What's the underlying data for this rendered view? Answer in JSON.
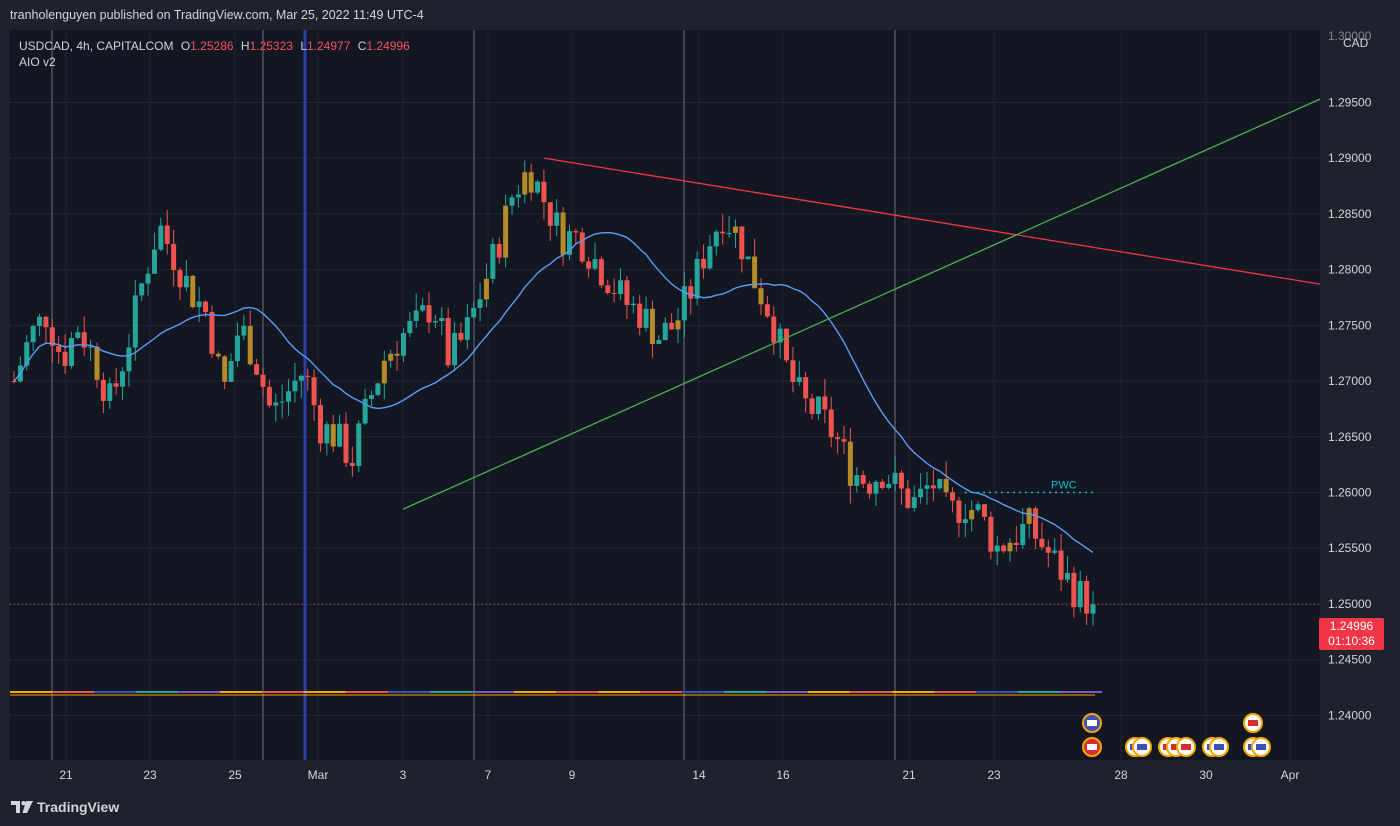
{
  "header": {
    "publisher": "tranholenguyen published on TradingView.com, Mar 25, 2022 11:49 UTC-4"
  },
  "legend": {
    "symbol": "USDCAD, 4h, CAPITALCOM",
    "o_label": "O",
    "o": "1.25286",
    "h_label": "H",
    "h": "1.25323",
    "l_label": "L",
    "l": "1.24977",
    "c_label": "C",
    "c": "1.24996",
    "indicator": "AIO v2"
  },
  "price_axis": {
    "currency": "CAD",
    "top_label": "1.30000",
    "current_price": "1.24996",
    "countdown": "01:10:36"
  },
  "footer": {
    "brand": "TradingView"
  },
  "annotations": {
    "pwc_label": "PWC"
  },
  "colors": {
    "up": "#26a69a",
    "down": "#ef5350",
    "ma": "#5b9cf6",
    "trend_red": "#f23645",
    "trend_green": "#4caf50",
    "pwc": "#00bcd4",
    "background": "#131722"
  },
  "chart_data": {
    "type": "candlestick",
    "symbol": "USDCAD",
    "timeframe": "4h",
    "ylim": [
      1.236,
      1.3015
    ],
    "y_ticks": [
      "1.29500",
      "1.29000",
      "1.28500",
      "1.28000",
      "1.27500",
      "1.27000",
      "1.26500",
      "1.26000",
      "1.25500",
      "1.25000",
      "1.24500",
      "1.24000"
    ],
    "x_ticks": [
      "21",
      "23",
      "25",
      "Mar",
      "3",
      "7",
      "9",
      "14",
      "16",
      "21",
      "23",
      "28",
      "30",
      "Apr"
    ],
    "close_path": [
      1.27,
      1.274,
      1.276,
      1.272,
      1.275,
      1.272,
      1.268,
      1.273,
      1.279,
      1.284,
      1.281,
      1.278,
      1.276,
      1.269,
      1.275,
      1.272,
      1.267,
      1.269,
      1.271,
      1.266,
      1.265,
      1.263,
      1.268,
      1.272,
      1.274,
      1.275,
      1.277,
      1.272,
      1.274,
      1.278,
      1.282,
      1.287,
      1.289,
      1.286,
      1.283,
      1.283,
      1.281,
      1.279,
      1.277,
      1.276,
      1.274,
      1.275,
      1.278,
      1.282,
      1.285,
      1.283,
      1.279,
      1.276,
      1.271,
      1.268,
      1.267,
      1.265,
      1.262,
      1.261,
      1.262,
      1.26,
      1.259,
      1.261,
      1.258,
      1.259,
      1.258,
      1.255,
      1.256,
      1.257,
      1.255,
      1.253,
      1.251,
      1.25
    ],
    "open": "1.25286",
    "high": "1.25323",
    "low": "1.24977",
    "close": "1.24996",
    "last_price": "1.24996",
    "pwc": 1.26,
    "trendlines": [
      {
        "color": "red",
        "from": {
          "x": "Mar 8",
          "y": 1.29
        },
        "to": {
          "x": "Apr 1",
          "y": 1.2787
        }
      },
      {
        "color": "green",
        "from": {
          "x": "Mar 3",
          "y": 1.2585
        },
        "to": {
          "x": "Apr 1",
          "y": 1.2953
        }
      }
    ]
  }
}
